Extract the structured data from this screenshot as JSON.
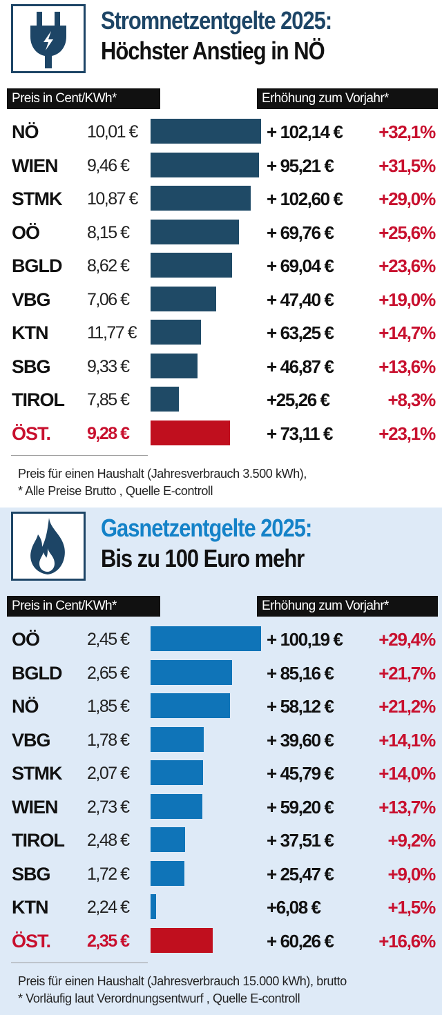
{
  "colors": {
    "strom_bar": "#1f4a66",
    "gas_bar": "#0f74b8",
    "total_bar": "#c00f1e",
    "strom_title": "#1d4566",
    "gas_title": "#1482c8",
    "accent_red": "#c8102e",
    "gas_background": "#deeaf7"
  },
  "strom": {
    "icon": "plug-icon",
    "title_line1": "Stromnetzentgelte 2025:",
    "title_line2": "Höchster Anstieg in NÖ",
    "header_left": "Preis in Cent/KWh*",
    "header_right": "Erhöhung zum  Vorjahr*",
    "rows": [
      {
        "region": "NÖ",
        "price": "10,01 €",
        "increase": "+ 102,14 €",
        "pct": "+32,1%",
        "pct_value": 32.1
      },
      {
        "region": "WIEN",
        "price": "9,46 €",
        "increase": "+ 95,21 €",
        "pct": "+31,5%",
        "pct_value": 31.5
      },
      {
        "region": "STMK",
        "price": "10,87 €",
        "increase": "+ 102,60 €",
        "pct": "+29,0%",
        "pct_value": 29.0
      },
      {
        "region": "OÖ",
        "price": "8,15 €",
        "increase": "+ 69,76 €",
        "pct": "+25,6%",
        "pct_value": 25.6
      },
      {
        "region": "BGLD",
        "price": "8,62 €",
        "increase": "+ 69,04 €",
        "pct": "+23,6%",
        "pct_value": 23.6
      },
      {
        "region": "VBG",
        "price": "7,06 €",
        "increase": "+ 47,40 €",
        "pct": "+19,0%",
        "pct_value": 19.0
      },
      {
        "region": "KTN",
        "price": "11,77 €",
        "increase": "+ 63,25 €",
        "pct": "+14,7%",
        "pct_value": 14.7
      },
      {
        "region": "SBG",
        "price": "9,33 €",
        "increase": "+ 46,87 €",
        "pct": "+13,6%",
        "pct_value": 13.6
      },
      {
        "region": "TIROL",
        "price": "7,85 €",
        "increase": "+25,26 €",
        "pct": "+8,3%",
        "pct_value": 8.3
      },
      {
        "region": "ÖST.",
        "price": "9,28 €",
        "increase": "+ 73,11 €",
        "pct": "+23,1%",
        "pct_value": 23.1,
        "total": true
      }
    ],
    "note_line1": "Preis für einen Haushalt (Jahresverbrauch 3.500 kWh),",
    "note_line2": "* Alle Preise Brutto , Quelle E-controll"
  },
  "gas": {
    "icon": "flame-icon",
    "title_line1": "Gasnetzentgelte 2025:",
    "title_line2": "Bis zu 100 Euro mehr",
    "header_left": "Preis in Cent/KWh*",
    "header_right": "Erhöhung zum  Vorjahr*",
    "rows": [
      {
        "region": "OÖ",
        "price": "2,45 €",
        "increase": "+ 100,19 €",
        "pct": "+29,4%",
        "pct_value": 29.4
      },
      {
        "region": "BGLD",
        "price": "2,65 €",
        "increase": "+ 85,16 €",
        "pct": "+21,7%",
        "pct_value": 21.7
      },
      {
        "region": "NÖ",
        "price": "1,85 €",
        "increase": "+ 58,12 €",
        "pct": "+21,2%",
        "pct_value": 21.2
      },
      {
        "region": "VBG",
        "price": "1,78 €",
        "increase": "+ 39,60 €",
        "pct": "+14,1%",
        "pct_value": 14.1
      },
      {
        "region": "STMK",
        "price": "2,07 €",
        "increase": "+ 45,79 €",
        "pct": "+14,0%",
        "pct_value": 14.0
      },
      {
        "region": "WIEN",
        "price": "2,73 €",
        "increase": "+ 59,20 €",
        "pct": "+13,7%",
        "pct_value": 13.7
      },
      {
        "region": "TIROL",
        "price": "2,48 €",
        "increase": "+ 37,51 €",
        "pct": "+9,2%",
        "pct_value": 9.2
      },
      {
        "region": "SBG",
        "price": "1,72 €",
        "increase": "+ 25,47 €",
        "pct": "+9,0%",
        "pct_value": 9.0
      },
      {
        "region": "KTN",
        "price": "2,24 €",
        "increase": "+6,08 €",
        "pct": "+1,5%",
        "pct_value": 1.5
      },
      {
        "region": "ÖST.",
        "price": "2,35 €",
        "increase": "+ 60,26 €",
        "pct": "+16,6%",
        "pct_value": 16.6,
        "total": true
      }
    ],
    "note_line1": "Preis für einen Haushalt (Jahresverbrauch 15.000 kWh), brutto",
    "note_line2": "* Vorläufig laut Verordnungsentwurf , Quelle E-controll"
  },
  "chart_data": [
    {
      "type": "bar",
      "title": "Stromnetzentgelte 2025: Höchster Anstieg in NÖ",
      "categories": [
        "NÖ",
        "WIEN",
        "STMK",
        "OÖ",
        "BGLD",
        "VBG",
        "KTN",
        "SBG",
        "TIROL",
        "ÖST."
      ],
      "prices": [
        10.01,
        9.46,
        10.87,
        8.15,
        8.62,
        7.06,
        11.77,
        9.33,
        7.85,
        9.28
      ],
      "increase": [
        102.14,
        95.21,
        102.6,
        69.76,
        69.04,
        47.4,
        63.25,
        46.87,
        25.26,
        73.11
      ],
      "values": [
        32.1,
        31.5,
        29.0,
        25.6,
        23.6,
        19.0,
        14.7,
        13.6,
        8.3,
        23.1
      ]
    },
    {
      "type": "bar",
      "title": "Gasnetzentgelte 2025: Bis zu 100 Euro mehr",
      "categories": [
        "OÖ",
        "BGLD",
        "NÖ",
        "VBG",
        "STMK",
        "WIEN",
        "TIROL",
        "SBG",
        "KTN",
        "ÖST."
      ],
      "prices": [
        2.45,
        2.65,
        1.85,
        1.78,
        2.07,
        2.73,
        2.48,
        1.72,
        2.24,
        2.35
      ],
      "increase": [
        100.19,
        85.16,
        58.12,
        39.6,
        45.79,
        59.2,
        37.51,
        25.47,
        6.08,
        60.26
      ],
      "values": [
        29.4,
        21.7,
        21.2,
        14.1,
        14.0,
        13.7,
        9.2,
        9.0,
        1.5,
        16.6
      ]
    }
  ]
}
